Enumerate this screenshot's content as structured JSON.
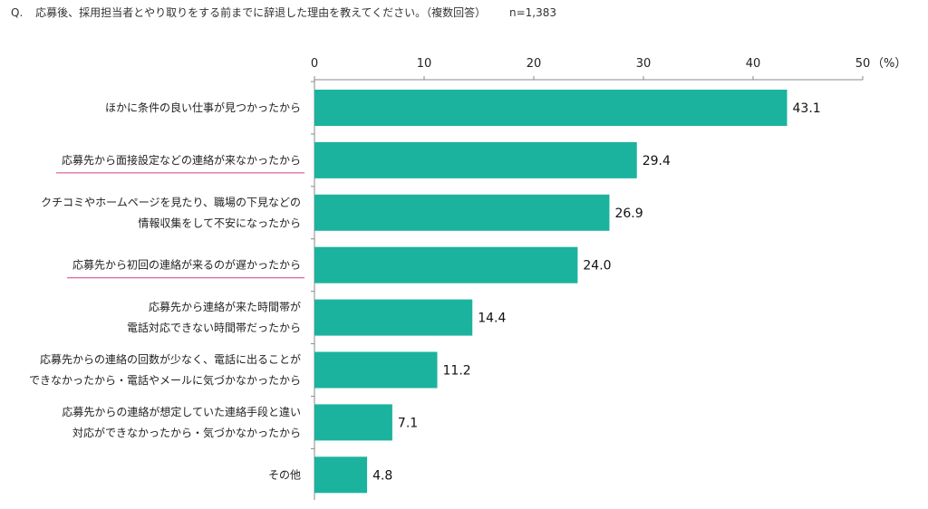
{
  "question": {
    "prefix": "Q.",
    "text": "応募後、採用担当者とやり取りをする前までに辞退した理由を教えてください。（複数回答）",
    "sample": "n=1,383"
  },
  "chart_data": {
    "type": "bar",
    "orientation": "horizontal",
    "unit_label": "（%）",
    "xlim": [
      0,
      50
    ],
    "ticks": [
      0,
      10,
      20,
      30,
      40,
      50
    ],
    "bar_color": "#1bb39e",
    "underline_color": "#d63f8c",
    "categories": [
      {
        "lines": [
          "ほかに条件の良い仕事が見つかったから"
        ],
        "value": 43.1,
        "value_label": "43.1",
        "underlined": false
      },
      {
        "lines": [
          "応募先から面接設定などの連絡が来なかったから"
        ],
        "value": 29.4,
        "value_label": "29.4",
        "underlined": true
      },
      {
        "lines": [
          "クチコミやホームページを見たり、職場の下見などの",
          "情報収集をして不安になったから"
        ],
        "value": 26.9,
        "value_label": "26.9",
        "underlined": false
      },
      {
        "lines": [
          "応募先から初回の連絡が来るのが遅かったから"
        ],
        "value": 24.0,
        "value_label": "24.0",
        "underlined": true
      },
      {
        "lines": [
          "応募先から連絡が来た時間帯が",
          "電話対応できない時間帯だったから"
        ],
        "value": 14.4,
        "value_label": "14.4",
        "underlined": false
      },
      {
        "lines": [
          "応募先からの連絡の回数が少なく、電話に出ることが",
          "できなかったから・電話やメールに気づかなかったから"
        ],
        "value": 11.2,
        "value_label": "11.2",
        "underlined": false
      },
      {
        "lines": [
          "応募先からの連絡が想定していた連絡手段と違い",
          "対応ができなかったから・気づかなかったから"
        ],
        "value": 7.1,
        "value_label": "7.1",
        "underlined": false
      },
      {
        "lines": [
          "その他"
        ],
        "value": 4.8,
        "value_label": "4.8",
        "underlined": false
      }
    ]
  }
}
